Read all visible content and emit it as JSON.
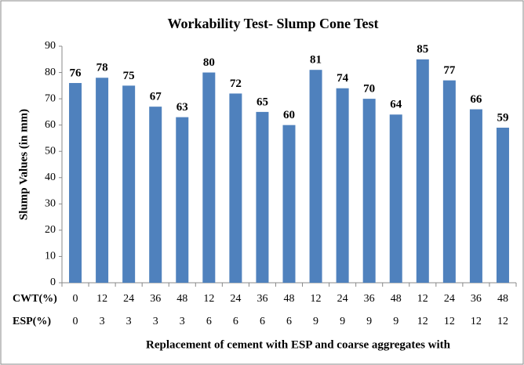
{
  "chart_data": {
    "type": "bar",
    "title": "Workability  Test- Slump Cone Test",
    "y_label": "Slump Values  (in mm)",
    "x_label": "Replacement of cement with ESP and coarse aggregates with",
    "category_rows": [
      {
        "name": "CWT(%)",
        "labels": [
          "0",
          "12",
          "24",
          "36",
          "48",
          "12",
          "24",
          "36",
          "48",
          "12",
          "24",
          "36",
          "48",
          "12",
          "24",
          "36",
          "48"
        ]
      },
      {
        "name": "ESP(%)",
        "labels": [
          "0",
          "3",
          "3",
          "3",
          "3",
          "6",
          "6",
          "6",
          "6",
          "9",
          "9",
          "9",
          "9",
          "12",
          "12",
          "12",
          "12"
        ]
      }
    ],
    "values": [
      76,
      78,
      75,
      67,
      63,
      80,
      72,
      65,
      60,
      81,
      74,
      70,
      64,
      85,
      77,
      66,
      59
    ],
    "color": "#4f81bd",
    "ylim": [
      0,
      90
    ],
    "yticks": [
      0,
      10,
      20,
      30,
      40,
      50,
      60,
      70,
      80,
      90
    ],
    "grid": false
  }
}
